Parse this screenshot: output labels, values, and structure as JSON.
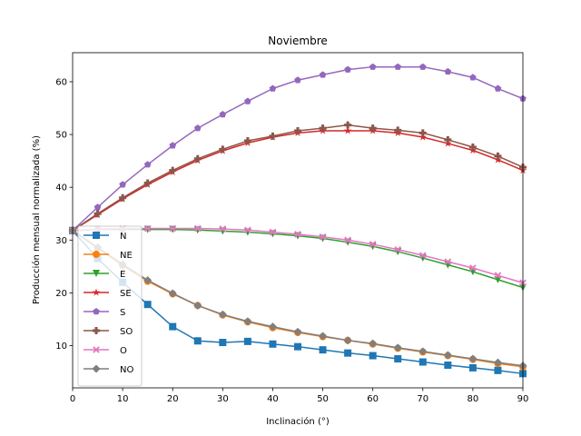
{
  "chart_data": {
    "type": "line",
    "title": "Noviembre",
    "xlabel": "Inclinación (°)",
    "ylabel": "Producción mensual normalizada (%)",
    "xlim": [
      0,
      90
    ],
    "ylim": [
      2,
      65.5
    ],
    "xticks": [
      0,
      10,
      20,
      30,
      40,
      50,
      60,
      70,
      80,
      90
    ],
    "yticks": [
      10,
      20,
      30,
      40,
      50,
      60
    ],
    "grid": false,
    "legend_position": "lower-left",
    "x": [
      0,
      5,
      10,
      15,
      20,
      25,
      30,
      35,
      40,
      45,
      50,
      55,
      60,
      65,
      70,
      75,
      80,
      85,
      90
    ],
    "series": [
      {
        "name": "N",
        "color": "#1f77b4",
        "marker": "square",
        "values": [
          31.8,
          26.5,
          22.0,
          17.8,
          13.6,
          10.9,
          10.6,
          10.8,
          10.3,
          9.8,
          9.2,
          8.6,
          8.1,
          7.5,
          6.9,
          6.3,
          5.8,
          5.3,
          4.7
        ]
      },
      {
        "name": "NE",
        "color": "#ff7f0e",
        "marker": "circle",
        "values": [
          31.8,
          28.5,
          25.2,
          22.2,
          19.8,
          17.6,
          15.8,
          14.5,
          13.4,
          12.5,
          11.7,
          11.0,
          10.3,
          9.5,
          8.8,
          8.1,
          7.4,
          6.6,
          6.0
        ]
      },
      {
        "name": "E",
        "color": "#2ca02c",
        "marker": "triangle-down",
        "values": [
          31.8,
          32.0,
          32.0,
          32.0,
          32.0,
          31.9,
          31.7,
          31.5,
          31.2,
          30.8,
          30.3,
          29.6,
          28.8,
          27.8,
          26.6,
          25.3,
          24.0,
          22.5,
          21.0
        ]
      },
      {
        "name": "SE",
        "color": "#d62728",
        "marker": "star",
        "values": [
          31.8,
          34.8,
          37.8,
          40.5,
          42.9,
          45.1,
          46.9,
          48.4,
          49.5,
          50.3,
          50.7,
          50.7,
          50.7,
          50.3,
          49.5,
          48.3,
          47.0,
          45.2,
          43.2
        ]
      },
      {
        "name": "S",
        "color": "#9467bd",
        "marker": "pentagon",
        "values": [
          31.8,
          36.2,
          40.5,
          44.3,
          47.9,
          51.2,
          53.8,
          56.3,
          58.7,
          60.3,
          61.3,
          62.3,
          62.8,
          62.8,
          62.8,
          61.9,
          60.8,
          58.7,
          56.8
        ]
      },
      {
        "name": "SO",
        "color": "#8c564b",
        "marker": "plus",
        "values": [
          31.8,
          35.0,
          38.0,
          40.8,
          43.2,
          45.4,
          47.2,
          48.8,
          49.7,
          50.7,
          51.2,
          51.8,
          51.2,
          50.8,
          50.3,
          49.0,
          47.6,
          45.9,
          43.8
        ]
      },
      {
        "name": "O",
        "color": "#e377c2",
        "marker": "x",
        "values": [
          31.8,
          32.1,
          32.2,
          32.2,
          32.2,
          32.2,
          32.1,
          31.9,
          31.5,
          31.1,
          30.6,
          30.0,
          29.2,
          28.2,
          27.1,
          25.9,
          24.7,
          23.3,
          21.9
        ]
      },
      {
        "name": "NO",
        "color": "#7f7f7f",
        "marker": "diamond",
        "values": [
          31.8,
          28.6,
          25.4,
          22.4,
          19.9,
          17.6,
          15.9,
          14.6,
          13.6,
          12.6,
          11.8,
          11.0,
          10.4,
          9.6,
          8.9,
          8.2,
          7.5,
          6.8,
          6.2
        ]
      }
    ]
  }
}
